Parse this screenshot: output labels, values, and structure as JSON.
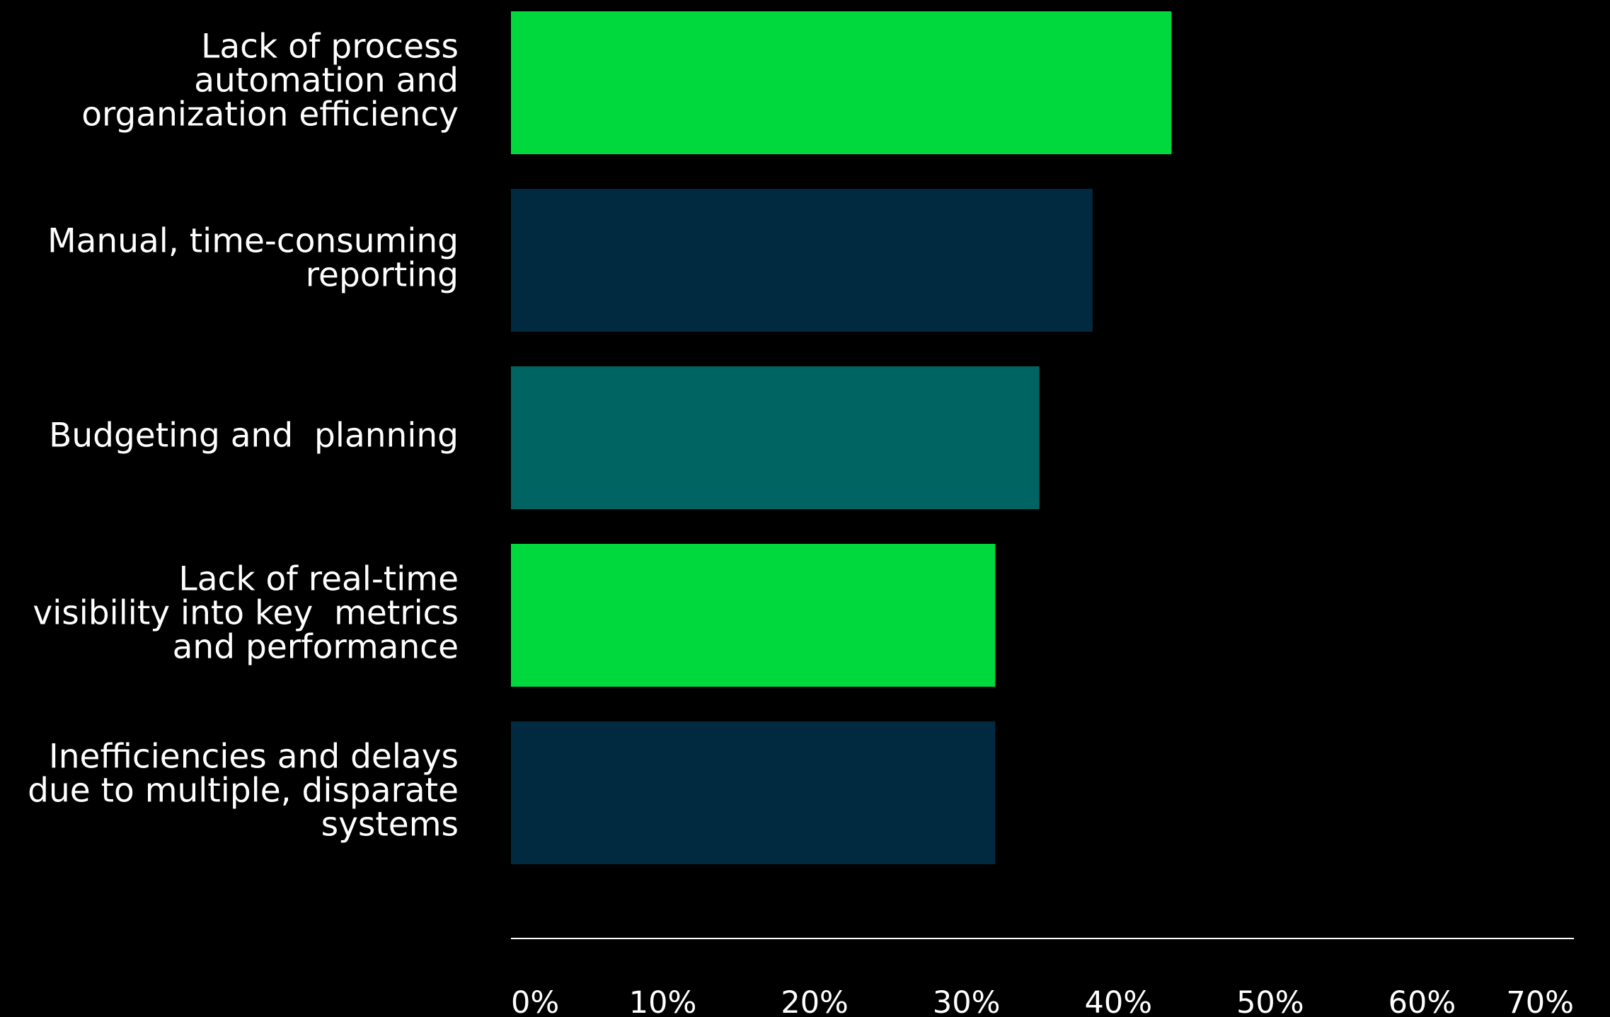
{
  "chart_data": {
    "type": "bar",
    "orientation": "horizontal",
    "title": "",
    "xlabel": "",
    "ylabel": "",
    "xlim": [
      0,
      70
    ],
    "grid": false,
    "legend": "none",
    "categories": [
      "Lack of process automation and organization efficiency",
      "Manual, time-consuming reporting",
      "Budgeting and  planning",
      "Lack of real-time visibility into key  metrics and performance",
      "Inefficiencies and delays due to multiple, disparate systems"
    ],
    "category_lines": [
      [
        "Lack of process",
        "automation and",
        "organization efficiency"
      ],
      [
        "Manual, time-consuming",
        "reporting"
      ],
      [
        "Budgeting and  planning"
      ],
      [
        "Lack of real-time",
        "visibility into key  metrics",
        "and performance"
      ],
      [
        "Inefficiencies and delays",
        "due to multiple, disparate",
        "systems"
      ]
    ],
    "values": [
      43.5,
      38.3,
      34.8,
      31.9,
      31.9
    ],
    "bar_colors": [
      "#00d93e",
      "#012a40",
      "#006462",
      "#00d93e",
      "#012a40"
    ],
    "x_ticks": [
      0,
      10,
      20,
      30,
      40,
      50,
      60,
      70
    ],
    "x_tick_labels": [
      "0%",
      "10%",
      "20%",
      "30%",
      "40%",
      "50%",
      "60%",
      "70%"
    ]
  },
  "colors": {
    "background": "#000000",
    "axis": "#ffffff",
    "text": "#ffffff"
  }
}
